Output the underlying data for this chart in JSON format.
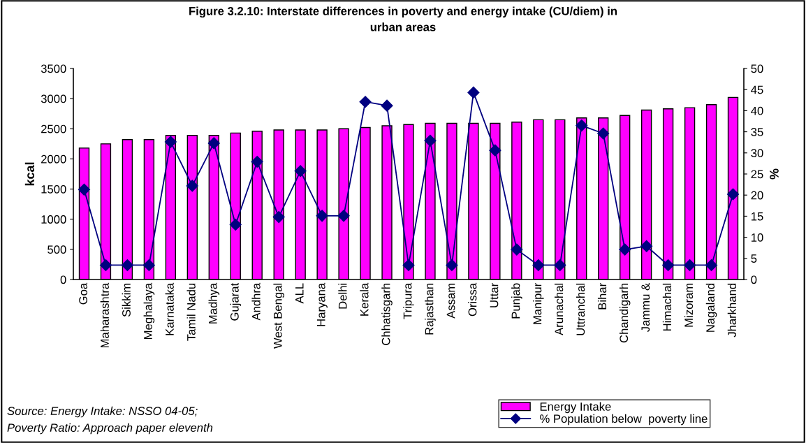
{
  "chart_data": {
    "type": "bar",
    "title": "Figure 3.2.10: Interstate differences in poverty and energy intake (CU/diem) in\nurban areas",
    "ylabel": "kcal",
    "y2label": "%",
    "categories": [
      "Goa",
      "Maharashtra",
      "Sikkim",
      "Meghalaya",
      "Karnataka",
      "Tamil Nadu",
      "Madhya",
      "Gujarat",
      "Andhra",
      "West Bengal",
      "ALL",
      "Haryana",
      "Delhi",
      "Kerala",
      "Chhatisgarh",
      "Tripura",
      "Rajasthan",
      "Assam",
      "Orissa",
      "Uttar",
      "Punjab",
      "Manipur",
      "Arunachal",
      "Uttranchal",
      "Bihar",
      "Chandigarh",
      "Jammu &",
      "Himachal",
      "Mizoram",
      "Nagaland",
      "Jharkhand"
    ],
    "series": [
      {
        "name": "Energy Intake",
        "color": "#ff00ff",
        "values": [
          2180,
          2250,
          2320,
          2320,
          2390,
          2390,
          2390,
          2430,
          2460,
          2480,
          2480,
          2480,
          2500,
          2520,
          2550,
          2570,
          2590,
          2590,
          2590,
          2590,
          2610,
          2650,
          2650,
          2680,
          2680,
          2720,
          2810,
          2830,
          2850,
          2900,
          3020
        ]
      },
      {
        "name": "% Population below  poverty line",
        "type": "line",
        "axis": "y2",
        "color": "#000080",
        "marker": "diamond",
        "values": [
          21.3,
          3.4,
          3.4,
          3.4,
          32.6,
          22.2,
          32.3,
          13.0,
          27.9,
          14.8,
          25.7,
          15.1,
          15.1,
          42.1,
          41.2,
          3.4,
          32.9,
          3.4,
          44.3,
          30.6,
          7.1,
          3.4,
          3.4,
          36.5,
          34.6,
          7.1,
          7.9,
          3.4,
          3.4,
          3.4,
          20.2
        ]
      }
    ],
    "ylim": [
      0,
      3500
    ],
    "yticks": [
      0,
      500,
      1000,
      1500,
      2000,
      2500,
      3000,
      3500
    ],
    "y2lim": [
      0,
      50
    ],
    "y2ticks": [
      0,
      5,
      10,
      15,
      20,
      25,
      30,
      35,
      40,
      45,
      50
    ],
    "grid": false,
    "legend": "bottom right",
    "annotations": [
      "Source: Energy Intake: NSSO 04-05;\nPoverty Ratio: Approach paper eleventh"
    ]
  }
}
